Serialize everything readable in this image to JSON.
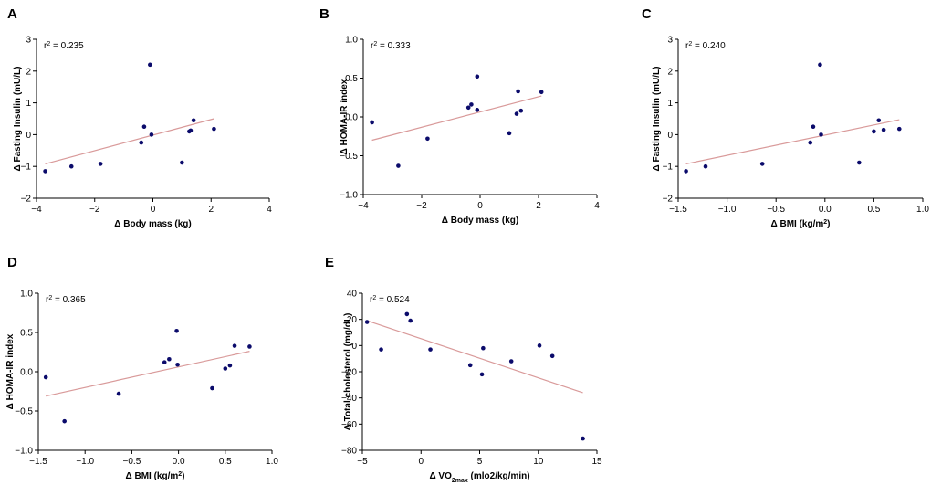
{
  "chart_data": [
    {
      "panel": "A",
      "type": "scatter",
      "xlabel": "Δ  Body mass (kg)",
      "ylabel": "Δ Fasting Insulin (mU/L)",
      "r2_prefix": "r",
      "r2_sup": "2",
      "r2_value": " = 0.235",
      "xlim": [
        -4,
        4
      ],
      "ylim": [
        -2,
        3
      ],
      "xticks": [
        -4,
        -2,
        0,
        2,
        4
      ],
      "yticks": [
        -2,
        -1,
        0,
        1,
        2,
        3
      ],
      "xtick_labels": [
        "−4",
        "−2",
        "0",
        "2",
        "4"
      ],
      "ytick_labels": [
        "−2",
        "−1",
        "0",
        "1",
        "2",
        "3"
      ],
      "points": [
        [
          -3.7,
          -1.15
        ],
        [
          -2.8,
          -1.0
        ],
        [
          -1.8,
          -0.92
        ],
        [
          -0.4,
          -0.25
        ],
        [
          -0.3,
          0.25
        ],
        [
          -0.1,
          2.2
        ],
        [
          -0.05,
          0.0
        ],
        [
          1.0,
          -0.88
        ],
        [
          1.25,
          0.1
        ],
        [
          1.3,
          0.13
        ],
        [
          1.4,
          0.45
        ],
        [
          2.1,
          0.18
        ]
      ],
      "fit": [
        [
          -3.7,
          -0.92
        ],
        [
          2.1,
          0.5
        ]
      ]
    },
    {
      "panel": "B",
      "type": "scatter",
      "xlabel": "Δ  Body mass (kg)",
      "ylabel": "Δ  HOMA-IR index",
      "r2_prefix": "r",
      "r2_sup": "2",
      "r2_value": " = 0.333",
      "xlim": [
        -4,
        4
      ],
      "ylim": [
        -1.0,
        1.0
      ],
      "xticks": [
        -4,
        -2,
        0,
        2,
        4
      ],
      "yticks": [
        -1.0,
        -0.5,
        0.0,
        0.5,
        1.0
      ],
      "xtick_labels": [
        "−4",
        "−2",
        "0",
        "2",
        "4"
      ],
      "ytick_labels": [
        "−1.0",
        "−0.5",
        "0.0",
        "0.5",
        "1.0"
      ],
      "points": [
        [
          -3.7,
          -0.07
        ],
        [
          -2.8,
          -0.63
        ],
        [
          -1.8,
          -0.28
        ],
        [
          -0.4,
          0.12
        ],
        [
          -0.3,
          0.16
        ],
        [
          -0.1,
          0.09
        ],
        [
          -0.1,
          0.52
        ],
        [
          1.0,
          -0.21
        ],
        [
          1.25,
          0.04
        ],
        [
          1.3,
          0.33
        ],
        [
          1.4,
          0.08
        ],
        [
          2.1,
          0.32
        ]
      ],
      "fit": [
        [
          -3.7,
          -0.3
        ],
        [
          2.1,
          0.27
        ]
      ]
    },
    {
      "panel": "C",
      "type": "scatter",
      "xlabel": "Δ BMI (kg/m",
      "xlabel_sup": "2",
      "xlabel_end": ")",
      "ylabel": "Δ Fasting Insulin (mU/L)",
      "r2_prefix": "r",
      "r2_sup": "2",
      "r2_value": " = 0.240",
      "xlim": [
        -1.5,
        1.0
      ],
      "ylim": [
        -2,
        3
      ],
      "xticks": [
        -1.5,
        -1.0,
        -0.5,
        0.0,
        0.5,
        1.0
      ],
      "yticks": [
        -2,
        -1,
        0,
        1,
        2,
        3
      ],
      "xtick_labels": [
        "−1.5",
        "−1.0",
        "−0.5",
        "0.0",
        "0.5",
        "1.0"
      ],
      "ytick_labels": [
        "−2",
        "−1",
        "0",
        "1",
        "2",
        "3"
      ],
      "points": [
        [
          -1.42,
          -1.15
        ],
        [
          -1.22,
          -1.0
        ],
        [
          -0.64,
          -0.92
        ],
        [
          -0.15,
          -0.25
        ],
        [
          -0.12,
          0.25
        ],
        [
          -0.05,
          2.2
        ],
        [
          -0.04,
          0.0
        ],
        [
          0.35,
          -0.88
        ],
        [
          0.5,
          0.1
        ],
        [
          0.55,
          0.45
        ],
        [
          0.6,
          0.15
        ],
        [
          0.76,
          0.18
        ]
      ],
      "fit": [
        [
          -1.42,
          -0.92
        ],
        [
          0.76,
          0.47
        ]
      ]
    },
    {
      "panel": "D",
      "type": "scatter",
      "xlabel": "Δ BMI (kg/m",
      "xlabel_sup": "2",
      "xlabel_end": ")",
      "ylabel": "Δ  HOMA-IR index",
      "r2_prefix": "r",
      "r2_sup": "2",
      "r2_value": " = 0.365",
      "xlim": [
        -1.5,
        1.0
      ],
      "ylim": [
        -1.0,
        1.0
      ],
      "xticks": [
        -1.5,
        -1.0,
        -0.5,
        0.0,
        0.5,
        1.0
      ],
      "yticks": [
        -1.0,
        -0.5,
        0.0,
        0.5,
        1.0
      ],
      "xtick_labels": [
        "−1.5",
        "−1.0",
        "−0.5",
        "0.0",
        "0.5",
        "1.0"
      ],
      "ytick_labels": [
        "−1.0",
        "−0.5",
        "0.0",
        "0.5",
        "1.0"
      ],
      "points": [
        [
          -1.42,
          -0.07
        ],
        [
          -1.22,
          -0.63
        ],
        [
          -0.64,
          -0.28
        ],
        [
          -0.15,
          0.12
        ],
        [
          -0.1,
          0.16
        ],
        [
          -0.02,
          0.52
        ],
        [
          -0.01,
          0.09
        ],
        [
          0.36,
          -0.21
        ],
        [
          0.5,
          0.04
        ],
        [
          0.55,
          0.08
        ],
        [
          0.6,
          0.33
        ],
        [
          0.76,
          0.32
        ]
      ],
      "fit": [
        [
          -1.42,
          -0.31
        ],
        [
          0.76,
          0.26
        ]
      ]
    },
    {
      "panel": "E",
      "type": "scatter",
      "xlabel": "Δ VO",
      "xlabel_sub": "2max",
      "xlabel_end": " (mlo2/kg/min)",
      "ylabel": "Δ Total cholesterol (mg/dL)",
      "r2_prefix": "r",
      "r2_sup": "2",
      "r2_value": " = 0.524",
      "xlim": [
        -5,
        15
      ],
      "ylim": [
        -80,
        40
      ],
      "xticks": [
        -5,
        0,
        5,
        10,
        15
      ],
      "yticks": [
        -80,
        -60,
        -40,
        -20,
        0,
        20,
        40
      ],
      "xtick_labels": [
        "−5",
        "0",
        "5",
        "10",
        "15"
      ],
      "ytick_labels": [
        "−80",
        "−60",
        "−40",
        "−20",
        "0",
        "20",
        "40"
      ],
      "points": [
        [
          -4.6,
          18
        ],
        [
          -3.4,
          -3
        ],
        [
          -1.2,
          24
        ],
        [
          -0.9,
          19
        ],
        [
          0.8,
          -3
        ],
        [
          4.2,
          -15
        ],
        [
          5.2,
          -22
        ],
        [
          5.3,
          -2
        ],
        [
          7.7,
          -12
        ],
        [
          10.1,
          0
        ],
        [
          11.2,
          -8
        ],
        [
          13.8,
          -71
        ]
      ],
      "fit": [
        [
          -4.6,
          19
        ],
        [
          13.8,
          -36
        ]
      ]
    }
  ]
}
